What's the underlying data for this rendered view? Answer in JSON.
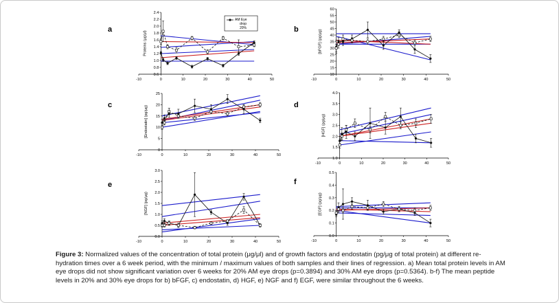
{
  "chart_data": [
    {
      "type": "line",
      "panel": "a",
      "ylabel": "Proteins (μg/μl)",
      "ylim": [
        0.6,
        2.4
      ],
      "yticks": [
        "0.6",
        "0.8",
        "1.0",
        "1.2",
        "1.4",
        "1.6",
        "1.8",
        "2.0",
        "2.2",
        "2.4"
      ],
      "xlim": [
        -10,
        50
      ],
      "xticks": [
        "-10",
        "0",
        "10",
        "20",
        "30",
        "40",
        "50"
      ],
      "legend": {
        "marker_label": "AM Eye drop 20%",
        "position": "top-right"
      },
      "series": [
        {
          "name": "AM Eye drop 20%",
          "color": "#111111",
          "marker": "circle",
          "x": [
            0,
            1,
            3,
            7,
            14,
            21,
            28,
            35,
            42
          ],
          "y": [
            1.22,
            1.02,
            0.92,
            1.07,
            0.82,
            1.05,
            0.85,
            1.2,
            1.52
          ],
          "err": [
            0.04,
            0.05,
            0.04,
            0.04,
            0.04,
            0.04,
            0.04,
            0.05,
            0.05
          ]
        },
        {
          "color": "#111111",
          "marker": "square",
          "x": [
            0,
            1,
            3,
            7,
            14,
            21,
            28,
            35,
            42
          ],
          "y": [
            1.55,
            1.85,
            1.4,
            1.3,
            1.65,
            1.25,
            1.65,
            1.4,
            1.45
          ],
          "err": [
            0.08,
            0.3,
            0.06,
            0.08,
            0.05,
            0.06,
            0.05,
            0.2,
            0.05
          ]
        }
      ],
      "regression": [
        {
          "color": "#1a1acc",
          "x": [
            0,
            42
          ],
          "y": [
            1.72,
            1.46
          ]
        },
        {
          "color": "#1a1acc",
          "x": [
            0,
            42
          ],
          "y": [
            1.38,
            1.55
          ]
        },
        {
          "color": "#1a1acc",
          "x": [
            0,
            42
          ],
          "y": [
            1.2,
            1.32
          ]
        },
        {
          "color": "#1a1acc",
          "x": [
            0,
            42
          ],
          "y": [
            0.98,
            0.98
          ]
        },
        {
          "color": "#cc2222",
          "x": [
            0,
            42
          ],
          "y": [
            1.55,
            1.52
          ]
        },
        {
          "color": "#cc2222",
          "x": [
            0,
            42
          ],
          "y": [
            1.08,
            1.28
          ]
        }
      ]
    },
    {
      "type": "line",
      "panel": "b",
      "ylabel": "[bFGF] (pg/μg)",
      "ylim": [
        10,
        60
      ],
      "yticks": [
        "10",
        "15",
        "20",
        "25",
        "30",
        "35",
        "40",
        "45",
        "50",
        "55",
        "60"
      ],
      "xlim": [
        -10,
        50
      ],
      "xticks": [
        "-10",
        "0",
        "10",
        "20",
        "30",
        "40",
        "50"
      ],
      "series": [
        {
          "color": "#111111",
          "marker": "circle",
          "x": [
            0,
            1,
            3,
            7,
            14,
            21,
            28,
            35,
            42
          ],
          "y": [
            31,
            35,
            35,
            37,
            44,
            32,
            42,
            29,
            22
          ],
          "err": [
            5,
            3,
            3,
            3,
            6,
            3,
            2,
            3,
            3
          ]
        },
        {
          "color": "#111111",
          "marker": "square",
          "x": [
            0,
            1,
            3,
            7,
            14,
            21,
            28,
            35,
            42
          ],
          "y": [
            30,
            33,
            37,
            36,
            35,
            37,
            40,
            34,
            37
          ],
          "err": [
            3,
            3,
            3,
            2,
            2,
            2,
            2,
            2,
            2
          ]
        }
      ],
      "regression": [
        {
          "color": "#1a1acc",
          "x": [
            0,
            42
          ],
          "y": [
            41,
            41
          ]
        },
        {
          "color": "#1a1acc",
          "x": [
            0,
            42
          ],
          "y": [
            39,
            21
          ]
        },
        {
          "color": "#1a1acc",
          "x": [
            0,
            42
          ],
          "y": [
            33,
            39
          ]
        },
        {
          "color": "#1a1acc",
          "x": [
            0,
            42
          ],
          "y": [
            33,
            33
          ]
        },
        {
          "color": "#cc2222",
          "x": [
            0,
            42
          ],
          "y": [
            36,
            33
          ]
        },
        {
          "color": "#cc2222",
          "x": [
            0,
            42
          ],
          "y": [
            34,
            37
          ]
        }
      ]
    },
    {
      "type": "line",
      "panel": "c",
      "ylabel": "[Endostatin] (pg/μg)",
      "ylim": [
        0,
        25
      ],
      "yticks": [
        "0",
        "5",
        "10",
        "15",
        "20",
        "25"
      ],
      "xlim": [
        -10,
        50
      ],
      "xticks": [
        "-10",
        "0",
        "10",
        "20",
        "30",
        "40",
        "50"
      ],
      "series": [
        {
          "color": "#111111",
          "marker": "circle",
          "x": [
            0,
            1,
            3,
            7,
            14,
            21,
            28,
            35,
            42
          ],
          "y": [
            12,
            14,
            16,
            16,
            19.5,
            18,
            22.5,
            18,
            13
          ],
          "err": [
            1.5,
            1.5,
            1.5,
            2,
            3,
            2,
            2,
            2,
            1
          ]
        },
        {
          "color": "#111111",
          "marker": "square",
          "x": [
            0,
            1,
            3,
            7,
            14,
            21,
            28,
            35,
            42
          ],
          "y": [
            10,
            12,
            17,
            15,
            14,
            17,
            16,
            19,
            20
          ],
          "err": [
            1,
            1,
            1.5,
            1,
            1,
            1,
            1,
            1,
            1
          ]
        }
      ],
      "regression": [
        {
          "color": "#1a1acc",
          "x": [
            0,
            42
          ],
          "y": [
            15,
            24
          ]
        },
        {
          "color": "#1a1acc",
          "x": [
            0,
            42
          ],
          "y": [
            13,
            22
          ]
        },
        {
          "color": "#1a1acc",
          "x": [
            0,
            42
          ],
          "y": [
            10,
            17
          ]
        },
        {
          "color": "#1a1acc",
          "x": [
            0,
            42
          ],
          "y": [
            12,
            16.5
          ]
        },
        {
          "color": "#cc2222",
          "x": [
            0,
            42
          ],
          "y": [
            13.5,
            20
          ]
        },
        {
          "color": "#cc2222",
          "x": [
            0,
            42
          ],
          "y": [
            13,
            19
          ]
        }
      ]
    },
    {
      "type": "line",
      "panel": "d",
      "ylabel": "[HGF] (pg/μg)",
      "ylim": [
        1.0,
        4.0
      ],
      "yticks": [
        "1.0",
        "1.5",
        "2.0",
        "2.5",
        "3.0",
        "3.5",
        "4.0"
      ],
      "xlim": [
        -10,
        50
      ],
      "xticks": [
        "-10",
        "0",
        "10",
        "20",
        "30",
        "40",
        "50"
      ],
      "series": [
        {
          "color": "#111111",
          "marker": "circle",
          "x": [
            0,
            1,
            3,
            7,
            14,
            21,
            28,
            35,
            42
          ],
          "y": [
            1.8,
            2.1,
            2.2,
            2.0,
            2.6,
            2.4,
            2.9,
            1.9,
            1.7
          ],
          "err": [
            0.2,
            0.3,
            0.3,
            0.2,
            0.7,
            0.3,
            0.4,
            0.2,
            0.2
          ]
        },
        {
          "color": "#111111",
          "marker": "square",
          "x": [
            0,
            1,
            3,
            7,
            14,
            21,
            28,
            35,
            42
          ],
          "y": [
            1.6,
            2.0,
            2.3,
            2.6,
            2.3,
            2.9,
            2.5,
            2.6,
            2.8
          ],
          "err": [
            0.15,
            0.15,
            0.2,
            0.2,
            0.15,
            0.2,
            0.15,
            0.2,
            0.2
          ]
        }
      ],
      "regression": [
        {
          "color": "#1a1acc",
          "x": [
            0,
            42
          ],
          "y": [
            2.3,
            3.3
          ]
        },
        {
          "color": "#1a1acc",
          "x": [
            0,
            42
          ],
          "y": [
            2.1,
            3.0
          ]
        },
        {
          "color": "#1a1acc",
          "x": [
            0,
            42
          ],
          "y": [
            1.6,
            2.2
          ]
        },
        {
          "color": "#1a1acc",
          "x": [
            0,
            42
          ],
          "y": [
            1.8,
            1.7
          ]
        },
        {
          "color": "#cc2222",
          "x": [
            0,
            42
          ],
          "y": [
            2.0,
            2.8
          ]
        },
        {
          "color": "#cc2222",
          "x": [
            0,
            42
          ],
          "y": [
            2.0,
            2.6
          ]
        }
      ]
    },
    {
      "type": "line",
      "panel": "e",
      "ylabel": "[NGF] (pg/μg)",
      "ylim": [
        0.0,
        3.0
      ],
      "yticks": [
        "0.0",
        "0.5",
        "1.0",
        "1.5",
        "2.0",
        "2.5",
        "3.0"
      ],
      "xlim": [
        -10,
        50
      ],
      "xticks": [
        "-10",
        "0",
        "10",
        "20",
        "30",
        "40",
        "50"
      ],
      "series": [
        {
          "color": "#111111",
          "marker": "circle",
          "x": [
            0,
            1,
            3,
            7,
            14,
            21,
            28,
            35,
            42
          ],
          "y": [
            0.6,
            0.7,
            0.6,
            0.5,
            1.9,
            1.1,
            0.6,
            1.8,
            0.5
          ],
          "err": [
            0.1,
            0.1,
            0.1,
            0.1,
            1.0,
            0.1,
            0.1,
            0.15,
            0.08
          ]
        },
        {
          "color": "#111111",
          "marker": "square",
          "x": [
            0,
            1,
            3,
            7,
            14,
            21,
            28,
            35,
            42
          ],
          "y": [
            0.5,
            0.5,
            0.6,
            0.5,
            0.4,
            0.6,
            0.7,
            1.2,
            0.5
          ],
          "err": [
            0.08,
            0.08,
            0.08,
            0.06,
            0.06,
            0.06,
            0.06,
            0.15,
            0.05
          ]
        }
      ],
      "regression": [
        {
          "color": "#1a1acc",
          "x": [
            0,
            42
          ],
          "y": [
            1.4,
            1.9
          ]
        },
        {
          "color": "#1a1acc",
          "x": [
            0,
            42
          ],
          "y": [
            0.9,
            1.6
          ]
        },
        {
          "color": "#1a1acc",
          "x": [
            0,
            42
          ],
          "y": [
            0.2,
            0.8
          ]
        },
        {
          "color": "#1a1acc",
          "x": [
            0,
            42
          ],
          "y": [
            0.3,
            0.5
          ]
        },
        {
          "color": "#cc2222",
          "x": [
            0,
            42
          ],
          "y": [
            0.6,
            1.0
          ]
        },
        {
          "color": "#cc2222",
          "x": [
            0,
            42
          ],
          "y": [
            0.5,
            0.85
          ]
        }
      ]
    },
    {
      "type": "line",
      "panel": "f",
      "ylabel": "[EGF] (pg/μg)",
      "ylim": [
        0.0,
        0.5
      ],
      "yticks": [
        "0.0",
        "0.1",
        "0.2",
        "0.3",
        "0.4",
        "0.5"
      ],
      "xlim": [
        -10,
        50
      ],
      "xticks": [
        "-10",
        "0",
        "10",
        "20",
        "30",
        "40",
        "50"
      ],
      "series": [
        {
          "color": "#111111",
          "marker": "circle",
          "x": [
            0,
            1,
            3,
            7,
            14,
            21,
            28,
            35,
            42
          ],
          "y": [
            0.17,
            0.22,
            0.25,
            0.27,
            0.24,
            0.19,
            0.21,
            0.18,
            0.1
          ],
          "err": [
            0.02,
            0.04,
            0.12,
            0.03,
            0.04,
            0.02,
            0.02,
            0.02,
            0.03
          ]
        },
        {
          "color": "#111111",
          "marker": "square",
          "x": [
            0,
            1,
            3,
            7,
            14,
            21,
            28,
            35,
            42
          ],
          "y": [
            0.18,
            0.21,
            0.2,
            0.23,
            0.22,
            0.25,
            0.21,
            0.2,
            0.22
          ],
          "err": [
            0.02,
            0.02,
            0.02,
            0.02,
            0.02,
            0.02,
            0.02,
            0.02,
            0.02
          ]
        }
      ],
      "regression": [
        {
          "color": "#1a1acc",
          "x": [
            0,
            42
          ],
          "y": [
            0.23,
            0.26
          ]
        },
        {
          "color": "#1a1acc",
          "x": [
            0,
            42
          ],
          "y": [
            0.22,
            0.22
          ]
        },
        {
          "color": "#1a1acc",
          "x": [
            0,
            42
          ],
          "y": [
            0.2,
            0.1
          ]
        },
        {
          "color": "#1a1acc",
          "x": [
            0,
            42
          ],
          "y": [
            0.18,
            0.16
          ]
        },
        {
          "color": "#cc2222",
          "x": [
            0,
            42
          ],
          "y": [
            0.21,
            0.19
          ]
        },
        {
          "color": "#cc2222",
          "x": [
            0,
            42
          ],
          "y": [
            0.2,
            0.22
          ]
        }
      ]
    }
  ],
  "caption": {
    "label": "Figure 3:",
    "text": " Normalized values of the concentration of total protein (μg/μl) and of growth factors and endostatin (pg/μg of total protein) at different re-hydration times over a 6 week period, with the minimum / maximum values of both samples and their lines of regression. a) Mean total protein levels in AM eye drops did not show significant variation over 6 weeks for 20% AM eye drops (p=0.3894) and 30% AM eye drops (p=0.5364). b-f) The mean peptide levels in 20% and 30% eye drops for b) bFGF, c) endostatin, d) HGF, e) NGF and f) EGF, were similar throughout the 6 weeks."
  }
}
